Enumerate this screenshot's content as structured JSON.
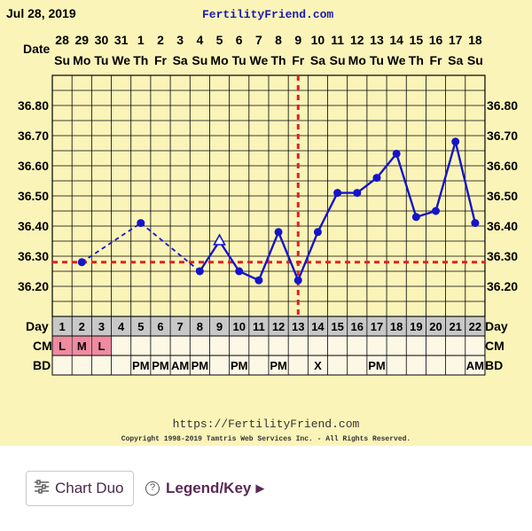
{
  "header": {
    "date": "Jul 28, 2019",
    "site": "FertilityFriend.com"
  },
  "footer": {
    "url": "https://FertilityFriend.com",
    "copyright": "Copyright 1998-2019 Tamtris Web Services Inc. - All Rights Reserved."
  },
  "toolbar": {
    "chart_duo_label": "Chart Duo",
    "legend_label": "Legend/Key",
    "legend_arrow": "▶",
    "help_glyph": "?"
  },
  "colors": {
    "background": "#fbf4b9",
    "line": "#1515c8",
    "coverline": "#dd2222",
    "cm_pink": "#f08aa0",
    "grey_cell": "#c8c8c8"
  },
  "chart_data": {
    "type": "line",
    "row_labels": {
      "date": "Date",
      "day": "Day",
      "cm": "CM",
      "bd": "BD"
    },
    "dates": [
      "28",
      "29",
      "30",
      "31",
      "1",
      "2",
      "3",
      "4",
      "5",
      "6",
      "7",
      "8",
      "9",
      "10",
      "11",
      "12",
      "13",
      "14",
      "15",
      "16",
      "17",
      "18"
    ],
    "weekdays": [
      "Su",
      "Mo",
      "Tu",
      "We",
      "Th",
      "Fr",
      "Sa",
      "Su",
      "Mo",
      "Tu",
      "We",
      "Th",
      "Fr",
      "Sa",
      "Su",
      "Mo",
      "Tu",
      "We",
      "Th",
      "Fr",
      "Sa",
      "Su"
    ],
    "cycle_days": [
      "1",
      "2",
      "3",
      "4",
      "5",
      "6",
      "7",
      "8",
      "9",
      "10",
      "11",
      "12",
      "13",
      "14",
      "15",
      "16",
      "17",
      "18",
      "19",
      "20",
      "21",
      "22"
    ],
    "cm": [
      "L",
      "M",
      "L",
      "",
      "",
      "",
      "",
      "",
      "",
      "",
      "",
      "",
      "",
      "",
      "",
      "",
      "",
      "",
      "",
      "",
      "",
      ""
    ],
    "bd": [
      "",
      "",
      "",
      "",
      "PM",
      "PM",
      "AM",
      "PM",
      "",
      "PM",
      "",
      "PM",
      "",
      "X",
      "",
      "",
      "PM",
      "",
      "",
      "",
      "",
      "AM"
    ],
    "ylim": [
      36.1,
      36.9
    ],
    "yticks": [
      "36.80",
      "36.70",
      "36.60",
      "36.50",
      "36.40",
      "36.30",
      "36.20"
    ],
    "ytick_values": [
      36.8,
      36.7,
      36.6,
      36.5,
      36.4,
      36.3,
      36.2
    ],
    "temperatures": [
      null,
      36.28,
      null,
      null,
      36.41,
      null,
      null,
      36.25,
      36.35,
      36.25,
      36.22,
      36.38,
      36.22,
      36.38,
      36.51,
      36.51,
      36.56,
      36.64,
      36.43,
      36.45,
      36.68,
      36.41
    ],
    "marker_style": [
      "",
      "dot",
      "",
      "",
      "dot",
      "",
      "",
      "dot",
      "triangle",
      "dot",
      "dot",
      "dot",
      "dot",
      "dot",
      "dot",
      "dot",
      "dot",
      "dot",
      "dot",
      "dot",
      "dot",
      "dot"
    ],
    "dashed_segments": [
      [
        1,
        4
      ],
      [
        4,
        7
      ]
    ],
    "solid_start_index": 7,
    "coverline": 36.28,
    "ovulation_day_index": 12
  }
}
